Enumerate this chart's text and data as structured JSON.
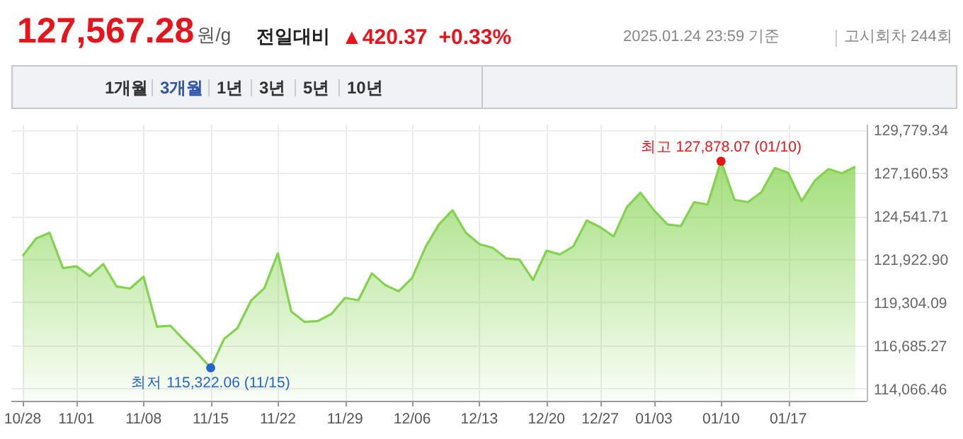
{
  "chart_data": {
    "type": "area",
    "title": "127,567.28",
    "annotations": [
      "원/g",
      "전일대비",
      "▲420.37",
      "+0.33%",
      "2025.01.24 23:59 기준",
      "고시회차 244회",
      "1개월",
      "3개월",
      "1년",
      "3년",
      "5년",
      "10년",
      {
        "text": "최저 115,322.06 (11/15)",
        "x": "11/15",
        "y": 115322.06
      },
      {
        "text": "최고 127,878.07 (01/10)",
        "x": "01/10",
        "y": 127878.07
      }
    ],
    "categories": [
      "10/28",
      null,
      null,
      null,
      "11/01",
      null,
      null,
      null,
      null,
      "11/08",
      null,
      null,
      null,
      null,
      "11/15",
      null,
      null,
      null,
      null,
      "11/22",
      null,
      null,
      null,
      null,
      "11/29",
      null,
      null,
      null,
      null,
      "12/06",
      null,
      null,
      null,
      null,
      "12/13",
      null,
      null,
      null,
      null,
      "12/20",
      null,
      null,
      null,
      "12/27",
      null,
      null,
      null,
      "01/03",
      null,
      null,
      null,
      null,
      "01/10",
      null,
      null,
      null,
      null,
      "01/17",
      null,
      null,
      null,
      null,
      null
    ],
    "series": [
      {
        "color": "#84d34f",
        "values": [
          122120,
          123180,
          123530,
          121380,
          121490,
          120890,
          121630,
          120260,
          120140,
          120860,
          117820,
          117880,
          117020,
          116220,
          115322.06,
          117080,
          117740,
          119400,
          120170,
          122270,
          118740,
          118110,
          118170,
          118600,
          119570,
          119430,
          121060,
          120350,
          119970,
          120780,
          122670,
          124040,
          124900,
          123530,
          122840,
          122610,
          121980,
          121890,
          120660,
          122440,
          122210,
          122700,
          124270,
          123870,
          123300,
          125100,
          125960,
          124900,
          124040,
          123930,
          125390,
          125250,
          127878.07,
          125530,
          125390,
          125990,
          127460,
          127170,
          125450,
          126710,
          127400,
          127140,
          127540
        ]
      }
    ],
    "ylim": [
      113320,
      130100
    ],
    "yticks": [
      {
        "value": 114066.46,
        "label": "114,066.46"
      },
      {
        "value": 116685.27,
        "label": "116,685.27"
      },
      {
        "value": 119304.09,
        "label": "119,304.09"
      },
      {
        "value": 121922.9,
        "label": "121,922.90"
      },
      {
        "value": 124541.71,
        "label": "124,541.71"
      },
      {
        "value": 127160.53,
        "label": "127,160.53"
      },
      {
        "value": 129779.34,
        "label": "129,779.34"
      }
    ],
    "grid": true
  }
}
